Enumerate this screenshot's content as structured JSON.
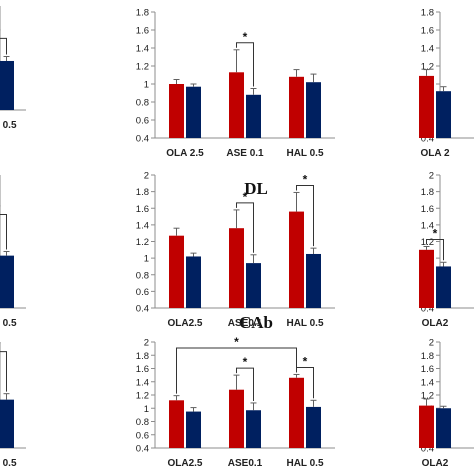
{
  "colors": {
    "red": "#c00000",
    "navy": "#002060",
    "axis": "#8c8c8c",
    "whisker": "#606060"
  },
  "panel_titles": [
    "",
    "DL",
    "CAb"
  ],
  "chart_data": [
    {
      "type": "bar",
      "title": "",
      "ylim": [
        0.4,
        1.8
      ],
      "yticks": [
        0.4,
        0.6,
        0.8,
        1,
        1.2,
        1.4,
        1.6,
        1.8
      ],
      "categories": [
        "HAL 0.5"
      ],
      "series": [
        {
          "values": [
            1.22
          ],
          "errors": [
            0.05
          ]
        },
        {
          "values": [
            1.06
          ],
          "errors": [
            0.06
          ]
        }
      ],
      "significance": [
        {
          "category": 0,
          "label": "*"
        }
      ]
    },
    {
      "type": "bar",
      "title": "",
      "ylim": [
        0.4,
        1.8
      ],
      "yticks": [
        0.4,
        0.6,
        0.8,
        1,
        1.2,
        1.4,
        1.6,
        1.8
      ],
      "categories": [
        "OLA 2.5",
        "ASE 0.1",
        "HAL 0.5"
      ],
      "series": [
        {
          "values": [
            1.0,
            1.13,
            1.08
          ],
          "errors": [
            0.05,
            0.25,
            0.08
          ]
        },
        {
          "values": [
            0.97,
            0.88,
            1.02
          ],
          "errors": [
            0.03,
            0.07,
            0.09
          ]
        }
      ],
      "significance": [
        {
          "category": 1,
          "label": "*"
        }
      ]
    },
    {
      "type": "bar",
      "title": "",
      "ylim": [
        0.4,
        1.8
      ],
      "yticks": [
        0.4,
        0.6,
        0.8,
        1,
        1.2,
        1.4,
        1.6,
        1.8
      ],
      "categories": [
        "OLA 2"
      ],
      "series": [
        {
          "values": [
            1.09
          ],
          "errors": [
            0.07
          ]
        },
        {
          "values": [
            0.92
          ],
          "errors": [
            0.05
          ]
        }
      ],
      "significance": []
    },
    {
      "type": "bar",
      "title": "",
      "ylim": [
        0.4,
        2
      ],
      "yticks": [
        0.4,
        0.6,
        0.8,
        1,
        1.2,
        1.4,
        1.6,
        1.8,
        2
      ],
      "categories": [
        "HAL 0.5"
      ],
      "series": [
        {
          "values": [
            1.4
          ],
          "errors": [
            0.04
          ]
        },
        {
          "values": [
            1.03
          ],
          "errors": [
            0.05
          ]
        }
      ],
      "significance": [
        {
          "category": 0,
          "label": "*"
        }
      ]
    },
    {
      "type": "bar",
      "title": "DL",
      "ylim": [
        0.4,
        2
      ],
      "yticks": [
        0.4,
        0.6,
        0.8,
        1,
        1.2,
        1.4,
        1.6,
        1.8,
        2
      ],
      "categories": [
        "OLA2.5",
        "ASE0.1",
        "HAL 0.5"
      ],
      "series": [
        {
          "values": [
            1.27,
            1.36,
            1.56
          ],
          "errors": [
            0.09,
            0.22,
            0.23
          ]
        },
        {
          "values": [
            1.02,
            0.94,
            1.05
          ],
          "errors": [
            0.04,
            0.1,
            0.07
          ]
        }
      ],
      "significance": [
        {
          "category": 1,
          "label": "*"
        },
        {
          "category": 2,
          "label": "*"
        }
      ]
    },
    {
      "type": "bar",
      "title": "",
      "ylim": [
        0.4,
        2
      ],
      "yticks": [
        0.4,
        0.6,
        0.8,
        1,
        1.2,
        1.4,
        1.6,
        1.8,
        2
      ],
      "categories": [
        "OLA2"
      ],
      "series": [
        {
          "values": [
            1.1
          ],
          "errors": [
            0.04
          ]
        },
        {
          "values": [
            0.9
          ],
          "errors": [
            0.05
          ]
        }
      ],
      "significance": [
        {
          "category": 0,
          "label": "*"
        }
      ]
    },
    {
      "type": "bar",
      "title": "",
      "ylim": [
        0.4,
        2
      ],
      "yticks": [
        0.4,
        0.6,
        0.8,
        1,
        1.2,
        1.4,
        1.6,
        1.8,
        2
      ],
      "categories": [
        "HAL 0.5"
      ],
      "series": [
        {
          "values": [
            1.6
          ],
          "errors": [
            0.15
          ]
        },
        {
          "values": [
            1.13
          ],
          "errors": [
            0.09
          ]
        }
      ],
      "significance": [
        {
          "category": 0,
          "label": "*"
        }
      ]
    },
    {
      "type": "bar",
      "title": "CAb",
      "ylim": [
        0.4,
        2
      ],
      "yticks": [
        0.4,
        0.6,
        0.8,
        1,
        1.2,
        1.4,
        1.6,
        1.8,
        2
      ],
      "categories": [
        "OLA2.5",
        "ASE0.1",
        "HAL 0.5"
      ],
      "series": [
        {
          "values": [
            1.12,
            1.28,
            1.46
          ],
          "errors": [
            0.07,
            0.22,
            0.05
          ]
        },
        {
          "values": [
            0.95,
            0.97,
            1.02
          ],
          "errors": [
            0.06,
            0.11,
            0.1
          ]
        }
      ],
      "significance": [
        {
          "category": 1,
          "label": "*"
        },
        {
          "category": 2,
          "label": "*"
        },
        {
          "from": 0,
          "to": 2,
          "label": "*"
        }
      ]
    },
    {
      "type": "bar",
      "title": "",
      "ylim": [
        0.4,
        2
      ],
      "yticks": [
        0.4,
        0.6,
        0.8,
        1,
        1.2,
        1.4,
        1.6,
        1.8,
        2
      ],
      "categories": [
        "OLA2"
      ],
      "series": [
        {
          "values": [
            1.04
          ],
          "errors": [
            0.1
          ]
        },
        {
          "values": [
            1.0
          ],
          "errors": [
            0.03
          ]
        }
      ],
      "significance": []
    }
  ]
}
